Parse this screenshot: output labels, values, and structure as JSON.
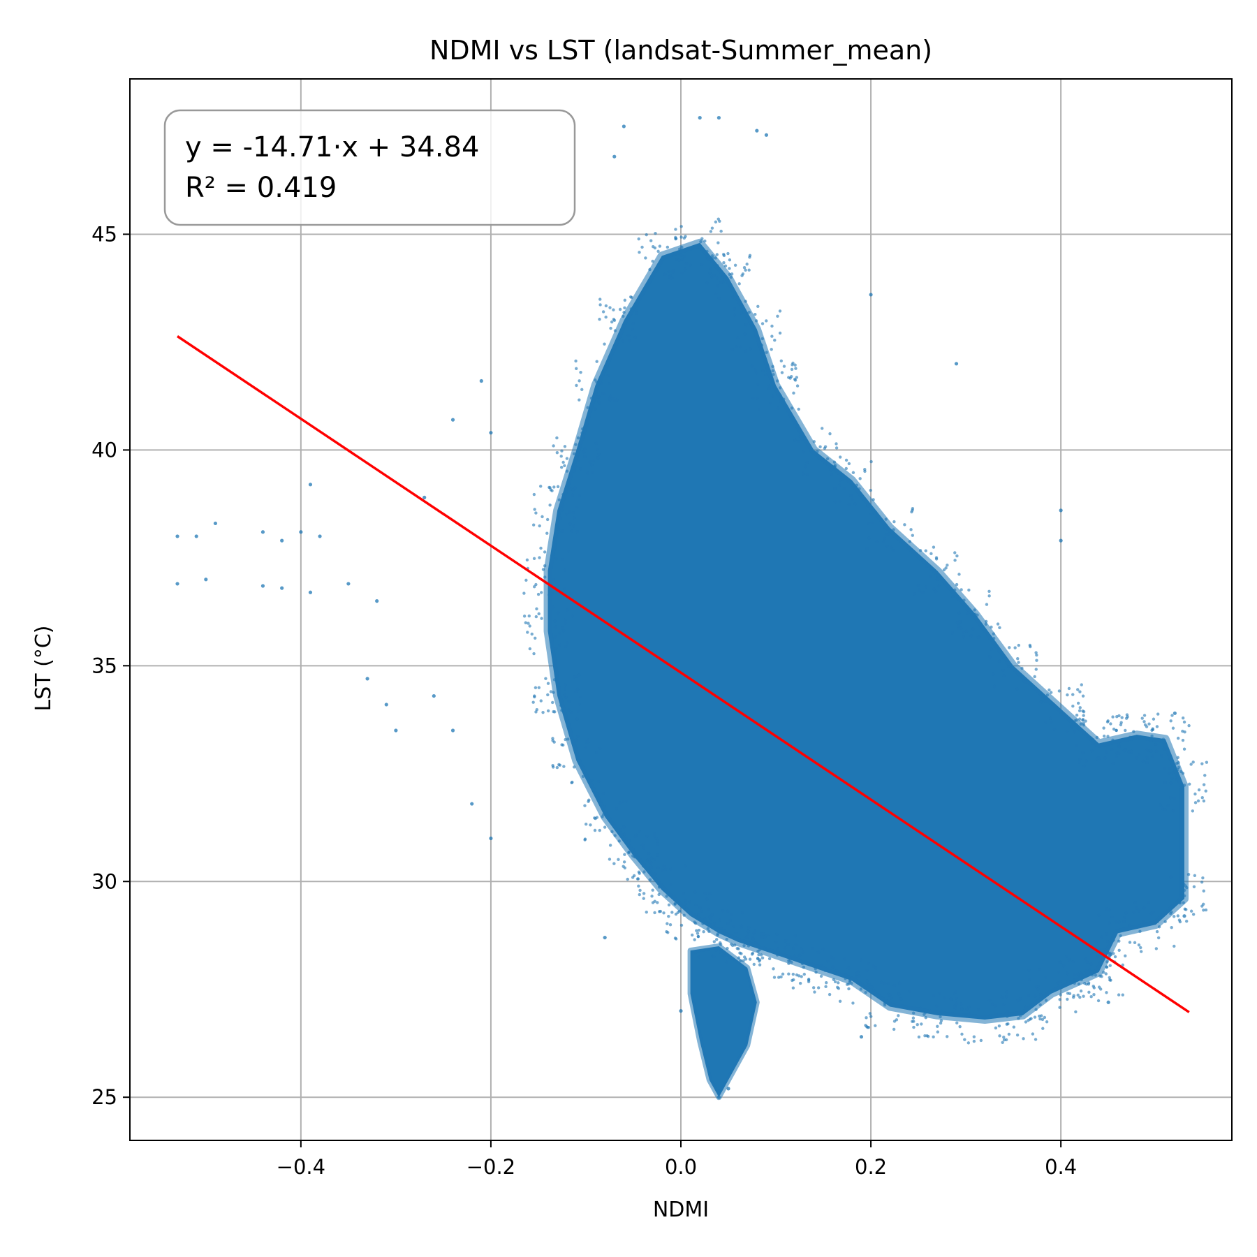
{
  "chart_data": {
    "type": "scatter",
    "title": "NDMI vs LST (landsat-Summer_mean)",
    "xlabel": "NDMI",
    "ylabel": "LST (°C)",
    "xlim": [
      -0.58,
      0.58
    ],
    "ylim": [
      24,
      48.6
    ],
    "xticks": [
      -0.4,
      -0.2,
      0.0,
      0.2,
      0.4
    ],
    "xtick_labels": [
      "−0.4",
      "−0.2",
      "0.0",
      "0.2",
      "0.4"
    ],
    "yticks": [
      25,
      30,
      35,
      40,
      45
    ],
    "ytick_labels": [
      "25",
      "30",
      "35",
      "40",
      "45"
    ],
    "grid": true,
    "annotation": {
      "equation": "y = -14.71·x + 34.84",
      "r2": "R² = 0.419",
      "placement": "top-left"
    },
    "series": [
      {
        "kind": "points",
        "color": "#1f77b4",
        "description_points": [
          [
            -0.53,
            38.0
          ],
          [
            -0.51,
            38.0
          ],
          [
            -0.49,
            38.3
          ],
          [
            -0.44,
            38.1
          ],
          [
            -0.42,
            37.9
          ],
          [
            -0.4,
            38.1
          ],
          [
            -0.38,
            38.0
          ],
          [
            -0.5,
            37.0
          ],
          [
            -0.53,
            36.9
          ],
          [
            -0.44,
            36.85
          ],
          [
            -0.42,
            36.8
          ],
          [
            -0.39,
            36.7
          ],
          [
            -0.35,
            36.9
          ],
          [
            -0.39,
            39.2
          ],
          [
            -0.33,
            34.7
          ],
          [
            -0.3,
            33.5
          ],
          [
            -0.31,
            34.1
          ],
          [
            -0.32,
            36.5
          ],
          [
            -0.27,
            38.9
          ],
          [
            -0.24,
            40.7
          ],
          [
            -0.21,
            41.6
          ],
          [
            -0.2,
            40.4
          ],
          [
            -0.22,
            31.8
          ],
          [
            -0.2,
            31.0
          ],
          [
            -0.26,
            34.3
          ],
          [
            -0.24,
            33.5
          ],
          [
            -0.06,
            47.5
          ],
          [
            0.02,
            47.7
          ],
          [
            0.04,
            47.7
          ],
          [
            0.08,
            47.4
          ],
          [
            0.09,
            47.3
          ],
          [
            -0.07,
            46.8
          ],
          [
            0.04,
            25.0
          ],
          [
            0.05,
            25.2
          ],
          [
            0.2,
            43.6
          ],
          [
            0.29,
            42.0
          ],
          [
            0.4,
            38.6
          ],
          [
            0.4,
            37.9
          ],
          [
            0.52,
            33.9
          ],
          [
            0.53,
            29.2
          ],
          [
            0.45,
            27.2
          ],
          [
            0.3,
            26.9
          ],
          [
            0.19,
            26.4
          ],
          [
            0.0,
            27.0
          ],
          [
            -0.08,
            28.7
          ]
        ],
        "density_polygon": [
          [
            -0.06,
            43.0
          ],
          [
            -0.02,
            44.5
          ],
          [
            0.02,
            44.8
          ],
          [
            0.05,
            44.0
          ],
          [
            0.08,
            42.8
          ],
          [
            0.1,
            41.5
          ],
          [
            0.14,
            40.0
          ],
          [
            0.18,
            39.3
          ],
          [
            0.22,
            38.2
          ],
          [
            0.27,
            37.2
          ],
          [
            0.31,
            36.2
          ],
          [
            0.35,
            35.0
          ],
          [
            0.4,
            34.0
          ],
          [
            0.44,
            33.2
          ],
          [
            0.48,
            33.4
          ],
          [
            0.51,
            33.3
          ],
          [
            0.53,
            32.2
          ],
          [
            0.53,
            29.6
          ],
          [
            0.5,
            29.0
          ],
          [
            0.46,
            28.8
          ],
          [
            0.44,
            27.9
          ],
          [
            0.42,
            27.7
          ],
          [
            0.39,
            27.4
          ],
          [
            0.36,
            26.9
          ],
          [
            0.32,
            26.8
          ],
          [
            0.27,
            26.9
          ],
          [
            0.22,
            27.1
          ],
          [
            0.18,
            27.7
          ],
          [
            0.14,
            28.0
          ],
          [
            0.1,
            28.3
          ],
          [
            0.06,
            28.6
          ],
          [
            0.04,
            28.8
          ],
          [
            0.01,
            29.2
          ],
          [
            -0.02,
            29.8
          ],
          [
            -0.05,
            30.6
          ],
          [
            -0.08,
            31.5
          ],
          [
            -0.11,
            32.8
          ],
          [
            -0.13,
            34.3
          ],
          [
            -0.14,
            35.8
          ],
          [
            -0.14,
            37.2
          ],
          [
            -0.13,
            38.6
          ],
          [
            -0.11,
            40.0
          ],
          [
            -0.09,
            41.5
          ]
        ],
        "tail_polygon": [
          [
            0.01,
            28.4
          ],
          [
            0.04,
            28.5
          ],
          [
            0.07,
            28.0
          ],
          [
            0.08,
            27.2
          ],
          [
            0.07,
            26.2
          ],
          [
            0.05,
            25.4
          ],
          [
            0.04,
            25.0
          ],
          [
            0.03,
            25.4
          ],
          [
            0.02,
            26.3
          ],
          [
            0.01,
            27.4
          ]
        ]
      },
      {
        "kind": "line",
        "color": "#ff0000",
        "slope": -14.71,
        "intercept": 34.84,
        "x": [
          -0.53,
          0.535
        ]
      }
    ]
  }
}
